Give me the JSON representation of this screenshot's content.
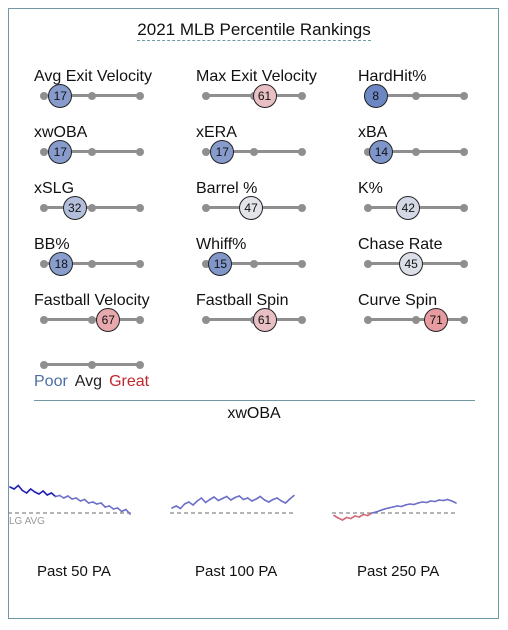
{
  "title": "2021 MLB Percentile Rankings",
  "colors": {
    "poor": "#4a6fa5",
    "avg": "#222222",
    "great": "#c0282d",
    "frame": "#6f9aa3"
  },
  "chart_data": [
    {
      "type": "dot-slider-grid",
      "title": "2021 MLB Percentile Rankings",
      "scale": [
        0,
        100
      ],
      "metrics": [
        {
          "label": "Avg Exit Velocity",
          "value": 17
        },
        {
          "label": "Max Exit Velocity",
          "value": 61
        },
        {
          "label": "HardHit%",
          "value": 8
        },
        {
          "label": "xwOBA",
          "value": 17
        },
        {
          "label": "xERA",
          "value": 17
        },
        {
          "label": "xBA",
          "value": 14
        },
        {
          "label": "xSLG",
          "value": 32
        },
        {
          "label": "Barrel %",
          "value": 47
        },
        {
          "label": "K%",
          "value": 42
        },
        {
          "label": "BB%",
          "value": 18
        },
        {
          "label": "Whiff%",
          "value": 15
        },
        {
          "label": "Chase Rate",
          "value": 45
        },
        {
          "label": "Fastball Velocity",
          "value": 67
        },
        {
          "label": "Fastball Spin",
          "value": 61
        },
        {
          "label": "Curve Spin",
          "value": 71
        }
      ],
      "legend": [
        "Poor",
        "Avg",
        "Great"
      ]
    },
    {
      "type": "line",
      "title": "xwOBA",
      "reference_label": "LG AVG",
      "series": [
        {
          "panel": "Past 50 PA",
          "values": [
            0.52,
            0.48,
            0.55,
            0.45,
            0.4,
            0.48,
            0.42,
            0.38,
            0.44,
            0.36,
            0.4,
            0.33,
            0.35,
            0.3,
            0.34,
            0.28,
            0.3,
            0.24,
            0.27,
            0.2,
            0.22,
            0.18,
            0.2,
            0.12,
            0.14,
            0.08,
            0.1,
            0.03,
            0.07,
            -0.02
          ]
        },
        {
          "panel": "Past 100 PA",
          "values": [
            0.1,
            0.14,
            0.09,
            0.18,
            0.22,
            0.16,
            0.24,
            0.3,
            0.21,
            0.27,
            0.32,
            0.25,
            0.29,
            0.33,
            0.26,
            0.31,
            0.34,
            0.27,
            0.3,
            0.24,
            0.28,
            0.33,
            0.26,
            0.22,
            0.27,
            0.3,
            0.24,
            0.2,
            0.28,
            0.35
          ]
        },
        {
          "panel": "Past 250 PA",
          "values": [
            -0.05,
            -0.1,
            -0.14,
            -0.09,
            -0.11,
            -0.06,
            -0.08,
            -0.03,
            -0.05,
            0.0,
            0.02,
            0.05,
            0.08,
            0.1,
            0.12,
            0.14,
            0.13,
            0.16,
            0.18,
            0.17,
            0.2,
            0.22,
            0.21,
            0.24,
            0.23,
            0.26,
            0.25,
            0.27,
            0.24,
            0.2
          ]
        }
      ]
    }
  ]
}
